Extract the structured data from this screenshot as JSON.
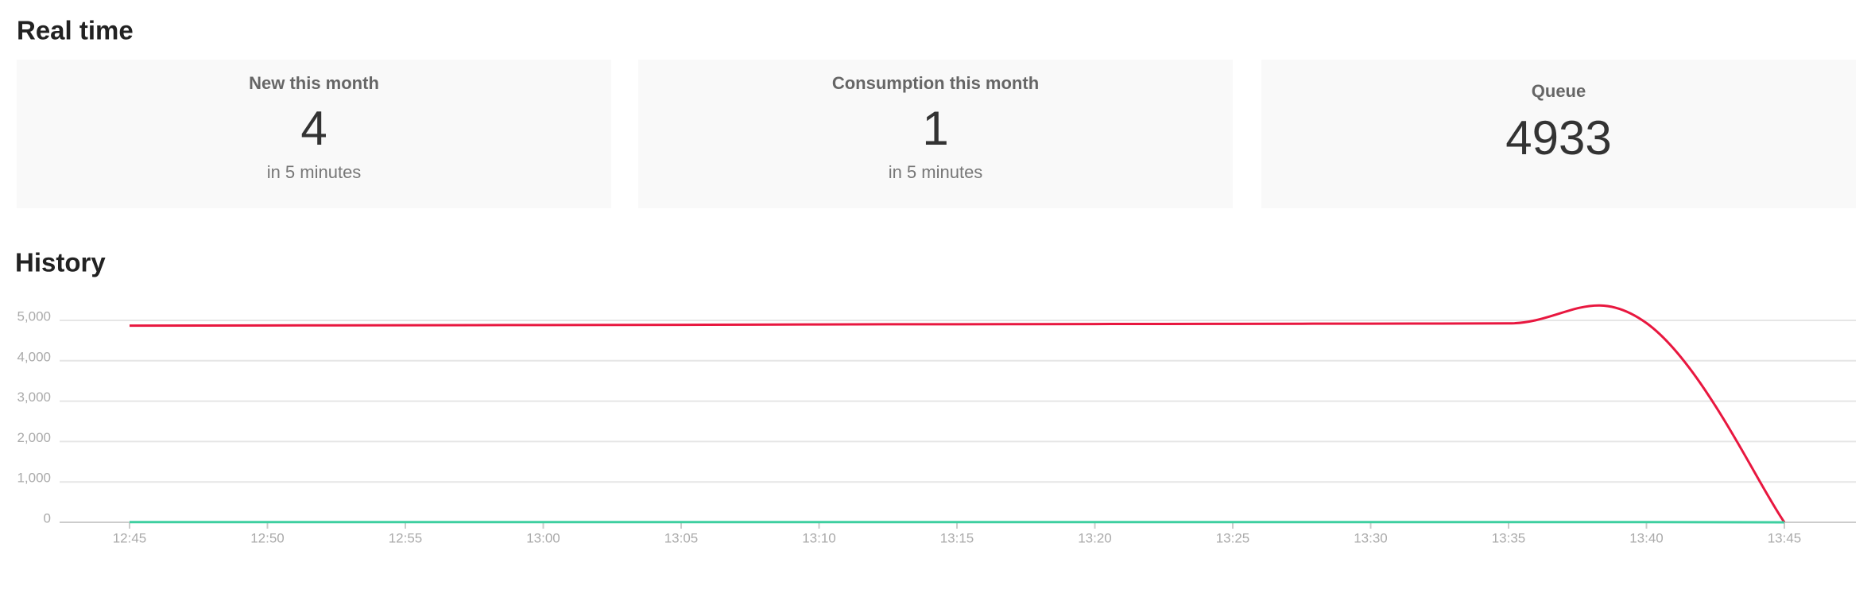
{
  "realtime": {
    "heading": "Real time",
    "cards": [
      {
        "title": "New this month",
        "value": 4,
        "subtitle": "in 5 minutes"
      },
      {
        "title": "Consumption this month",
        "value": 1,
        "subtitle": "in 5 minutes"
      },
      {
        "title": "Queue",
        "value": 4933
      }
    ]
  },
  "history": {
    "heading": "History"
  },
  "chart_data": {
    "type": "line",
    "categories": [
      "12:45",
      "12:50",
      "12:55",
      "13:00",
      "13:05",
      "13:10",
      "13:15",
      "13:20",
      "13:25",
      "13:30",
      "13:35",
      "13:40",
      "13:45"
    ],
    "series": [
      {
        "color": "#e8173f",
        "values": [
          4870,
          4875,
          4880,
          4885,
          4890,
          4900,
          4905,
          4910,
          4915,
          4920,
          4925,
          4933,
          0
        ]
      },
      {
        "color": "#3ecfa0",
        "values": [
          5,
          5,
          5,
          5,
          5,
          5,
          5,
          5,
          5,
          5,
          5,
          5,
          0
        ]
      }
    ],
    "ylim": [
      0,
      5000
    ],
    "yticks": [
      0,
      {
        "value": 1000,
        "label": "1,000"
      },
      {
        "value": 2000,
        "label": "2,000"
      },
      {
        "value": 3000,
        "label": "3,000"
      },
      {
        "value": 4000,
        "label": "4,000"
      },
      {
        "value": 5000,
        "label": "5,000"
      }
    ],
    "grid": true
  }
}
